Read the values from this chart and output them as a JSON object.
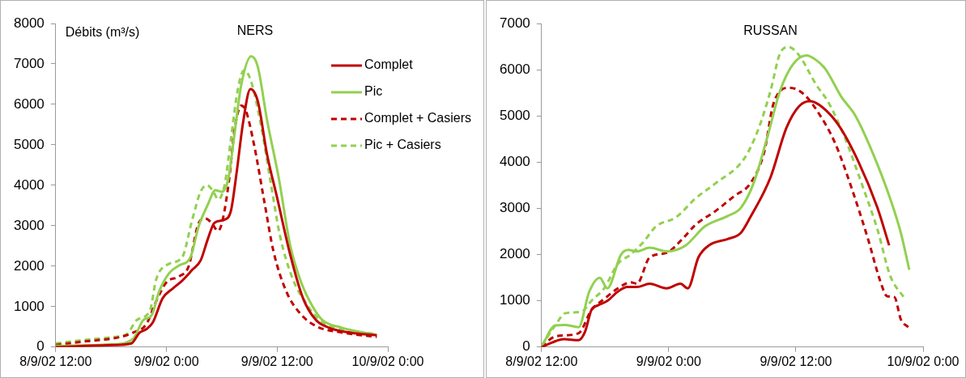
{
  "chart_data": [
    {
      "type": "line",
      "title": "NERS",
      "ylabel": "Débits (m³/s)",
      "xlim": [
        "--09-08T12:00",
        "--09-10T00:00"
      ],
      "xticks": [
        {
          "value": "--09-08T12:00",
          "label": "8/9/02 12:00"
        },
        {
          "value": "--09-09T00:00",
          "label": "9/9/02 0:00"
        },
        {
          "value": "--09-09T12:00",
          "label": "9/9/02 12:00"
        },
        {
          "value": "--09-10T00:00",
          "label": "10/9/02 0:00"
        }
      ],
      "ylim": [
        0,
        8000
      ],
      "yticks": [
        0,
        1000,
        2000,
        3000,
        4000,
        5000,
        6000,
        7000,
        8000
      ],
      "grid": false,
      "legend": "top right",
      "marker": "none",
      "series": [
        {
          "name": "Complet",
          "color": "#c00000",
          "line_style": "solid",
          "x": [
            "--09-08T12:00",
            "--09-08T18:18",
            "--09-08T20:12",
            "--09-08T21:06",
            "--09-08T21:48",
            "--09-08T22:30",
            "--09-08T23:36",
            "--09-09T00:42",
            "--09-09T01:42",
            "--09-09T02:48",
            "--09-09T03:42",
            "--09-09T04:30",
            "--09-09T05:12",
            "--09-09T06:18",
            "--09-09T07:00",
            "--09-09T07:36",
            "--09-09T08:18",
            "--09-09T09:06",
            "--09-09T09:54",
            "--09-09T10:54",
            "--09-09T12:00",
            "--09-09T13:24",
            "--09-09T14:48",
            "--09-09T16:12",
            "--09-09T17:36",
            "--09-09T19:48",
            "--09-09T22:48"
          ],
          "values": [
            0,
            50,
            90,
            360,
            440,
            600,
            1210,
            1450,
            1640,
            1910,
            2140,
            2680,
            3070,
            3150,
            3380,
            4300,
            5540,
            6380,
            6080,
            4770,
            3690,
            2300,
            1210,
            670,
            480,
            360,
            290
          ]
        },
        {
          "name": "Pic",
          "color": "#92d050",
          "line_style": "solid",
          "x": [
            "--09-08T12:00",
            "--09-08T18:18",
            "--09-08T20:24",
            "--09-08T21:30",
            "--09-08T22:24",
            "--09-08T23:12",
            "--09-09T00:18",
            "--09-09T01:24",
            "--09-09T02:36",
            "--09-09T03:30",
            "--09-09T04:30",
            "--09-09T05:18",
            "--09-09T06:00",
            "--09-09T06:42",
            "--09-09T07:24",
            "--09-09T08:06",
            "--09-09T09:12",
            "--09-09T09:54",
            "--09-09T10:54",
            "--09-09T12:12",
            "--09-09T13:24",
            "--09-09T14:36",
            "--09-09T15:54",
            "--09-09T16:54",
            "--09-09T19:00",
            "--09-09T22:48"
          ],
          "values": [
            30,
            70,
            210,
            670,
            790,
            1370,
            1830,
            2020,
            2220,
            2990,
            3530,
            3880,
            3840,
            4150,
            5310,
            6470,
            7190,
            6930,
            5620,
            4150,
            2530,
            1600,
            980,
            670,
            480,
            300
          ]
        },
        {
          "name": "Complet + Casiers",
          "color": "#c00000",
          "line_style": "dashed",
          "x": [
            "--09-08T12:00",
            "--09-08T14:48",
            "--09-08T19:00",
            "--09-08T20:24",
            "--09-08T21:48",
            "--09-08T22:54",
            "--09-09T00:00",
            "--09-09T01:24",
            "--09-09T02:24",
            "--09-09T03:30",
            "--09-09T04:12",
            "--09-09T04:54",
            "--09-09T05:36",
            "--09-09T06:06",
            "--09-09T06:48",
            "--09-09T07:24",
            "--09-09T08:06",
            "--09-09T08:36",
            "--09-09T09:30",
            "--09-09T10:36",
            "--09-09T11:36",
            "--09-09T13:00",
            "--09-09T14:30",
            "--09-09T16:12",
            "--09-09T19:00",
            "--09-09T22:48"
          ],
          "values": [
            50,
            130,
            250,
            360,
            560,
            1140,
            1600,
            1750,
            1990,
            3070,
            3180,
            3070,
            2870,
            3150,
            4150,
            5390,
            5970,
            5850,
            5000,
            3610,
            2370,
            1370,
            830,
            520,
            360,
            250
          ]
        },
        {
          "name": "Pic + Casiers",
          "color": "#92d050",
          "line_style": "dashed",
          "x": [
            "--09-08T12:00",
            "--09-08T14:48",
            "--09-08T18:18",
            "--09-08T19:42",
            "--09-08T20:48",
            "--09-08T22:12",
            "--09-08T22:54",
            "--09-09T00:18",
            "--09-09T01:42",
            "--09-09T02:48",
            "--09-09T03:42",
            "--09-09T04:24",
            "--09-09T05:06",
            "--09-09T05:36",
            "--09-09T06:18",
            "--09-09T07:00",
            "--09-09T07:42",
            "--09-09T08:24",
            "--09-09T09:06",
            "--09-09T10:12",
            "--09-09T11:18",
            "--09-09T12:18",
            "--09-09T13:42",
            "--09-09T15:12",
            "--09-09T16:36",
            "--09-09T19:00",
            "--09-09T22:48"
          ],
          "values": [
            90,
            170,
            250,
            320,
            670,
            900,
            1680,
            2060,
            2220,
            3150,
            3840,
            4000,
            3840,
            3650,
            4000,
            5160,
            6320,
            6840,
            6620,
            5540,
            4070,
            2760,
            1680,
            1060,
            670,
            440,
            320
          ]
        }
      ]
    },
    {
      "type": "line",
      "title": "RUSSAN",
      "xlim": [
        "--09-08T12:00",
        "--09-10T00:00"
      ],
      "xticks": [
        {
          "value": "--09-08T12:00",
          "label": "8/9/02 12:00"
        },
        {
          "value": "--09-09T00:00",
          "label": "9/9/02 0:00"
        },
        {
          "value": "--09-09T12:00",
          "label": "9/9/02 12:00"
        },
        {
          "value": "--09-10T00:00",
          "label": "10/9/02 0:00"
        }
      ],
      "ylim": [
        0,
        7000
      ],
      "yticks": [
        0,
        1000,
        2000,
        3000,
        4000,
        5000,
        6000,
        7000
      ],
      "grid": false,
      "legend": false,
      "marker": "none",
      "series": [
        {
          "color": "#c00000",
          "line_style": "solid",
          "x": [
            "--09-08T12:00",
            "--09-08T13:00",
            "--09-08T14:06",
            "--09-08T15:30",
            "--09-08T16:06",
            "--09-08T16:42",
            "--09-08T17:18",
            "--09-08T18:12",
            "--09-08T19:12",
            "--09-08T20:06",
            "--09-08T21:00",
            "--09-08T22:12",
            "--09-08T23:48",
            "--09-09T01:06",
            "--09-09T01:48",
            "--09-09T02:48",
            "--09-09T03:48",
            "--09-09T05:36",
            "--09-09T06:48",
            "--09-09T07:42",
            "--09-09T09:36",
            "--09-09T11:06",
            "--09-09T12:18",
            "--09-09T13:18",
            "--09-09T14:12",
            "--09-09T16:00",
            "--09-09T17:54",
            "--09-09T19:42",
            "--09-09T20:48"
          ],
          "values": [
            0,
            100,
            170,
            150,
            330,
            800,
            900,
            1000,
            1200,
            1300,
            1300,
            1370,
            1270,
            1370,
            1270,
            1940,
            2200,
            2340,
            2470,
            2810,
            3670,
            4740,
            5210,
            5320,
            5240,
            4810,
            4010,
            3010,
            2200
          ]
        },
        {
          "color": "#92d050",
          "line_style": "solid",
          "x": [
            "--09-08T12:00",
            "--09-08T13:18",
            "--09-08T14:12",
            "--09-08T15:30",
            "--09-08T16:30",
            "--09-08T17:30",
            "--09-08T18:12",
            "--09-08T19:30",
            "--09-08T20:12",
            "--09-08T21:00",
            "--09-08T22:12",
            "--09-08T23:48",
            "--09-09T01:36",
            "--09-09T03:24",
            "--09-09T05:36",
            "--09-09T06:48",
            "--09-09T08:00",
            "--09-09T09:18",
            "--09-09T10:30",
            "--09-09T11:42",
            "--09-09T13:00",
            "--09-09T13:54",
            "--09-09T14:48",
            "--09-09T16:18",
            "--09-09T17:36",
            "--09-09T19:06",
            "--09-09T20:54",
            "--09-09T21:54",
            "--09-09T22:42"
          ],
          "values": [
            10,
            470,
            480,
            430,
            1200,
            1500,
            1270,
            2000,
            2100,
            2070,
            2150,
            2070,
            2200,
            2610,
            2840,
            3010,
            3540,
            4540,
            5540,
            6110,
            6310,
            6210,
            6010,
            5410,
            5010,
            4280,
            3210,
            2470,
            1670
          ]
        },
        {
          "color": "#c00000",
          "line_style": "dashed",
          "x": [
            "--09-08T12:00",
            "--09-08T13:00",
            "--09-08T13:54",
            "--09-08T15:30",
            "--09-08T16:42",
            "--09-08T17:54",
            "--09-08T19:12",
            "--09-08T20:24",
            "--09-08T21:00",
            "--09-08T22:12",
            "--09-08T23:48",
            "--09-09T01:18",
            "--09-09T02:30",
            "--09-09T04:24",
            "--09-09T06:12",
            "--09-09T07:42",
            "--09-09T09:00",
            "--09-09T09:54",
            "--09-09T11:24",
            "--09-09T12:42",
            "--09-09T14:12",
            "--09-09T15:42",
            "--09-09T17:18",
            "--09-09T18:48",
            "--09-09T20:00",
            "--09-09T20:36",
            "--09-09T21:18",
            "--09-09T21:54",
            "--09-09T22:36"
          ],
          "values": [
            0,
            200,
            250,
            300,
            800,
            1040,
            1270,
            1400,
            1370,
            1940,
            2040,
            2340,
            2640,
            2940,
            3270,
            3540,
            4210,
            5280,
            5610,
            5480,
            5040,
            4410,
            3410,
            2340,
            1400,
            1100,
            1080,
            600,
            430
          ]
        },
        {
          "color": "#92d050",
          "line_style": "dashed",
          "x": [
            "--09-08T12:00",
            "--09-08T13:18",
            "--09-08T14:12",
            "--09-08T15:48",
            "--09-08T16:42",
            "--09-08T17:54",
            "--09-08T19:12",
            "--09-08T20:24",
            "--09-08T21:36",
            "--09-08T22:48",
            "--09-09T00:42",
            "--09-09T02:30",
            "--09-09T04:24",
            "--09-09T07:06",
            "--09-09T08:24",
            "--09-09T09:36",
            "--09-09T10:30",
            "--09-09T11:18",
            "--09-09T12:18",
            "--09-09T13:54",
            "--09-09T15:06",
            "--09-09T16:36",
            "--09-09T18:12",
            "--09-09T19:42",
            "--09-09T20:54",
            "--09-09T22:12"
          ],
          "values": [
            30,
            470,
            730,
            770,
            1000,
            1270,
            1800,
            2000,
            2270,
            2610,
            2810,
            3210,
            3540,
            4070,
            4680,
            5540,
            6350,
            6490,
            6310,
            5680,
            5280,
            4540,
            3540,
            2540,
            1540,
            1070
          ]
        }
      ]
    }
  ]
}
